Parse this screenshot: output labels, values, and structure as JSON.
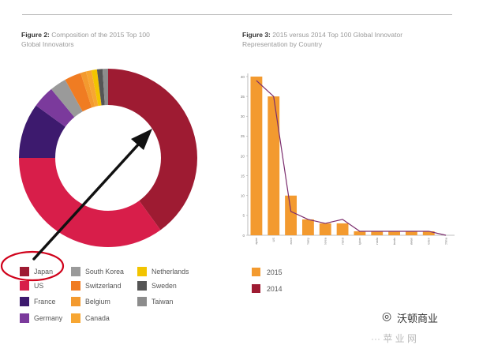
{
  "fig2": {
    "title_bold": "Figure 2:",
    "title_rest": "Composition of the 2015 Top 100",
    "title_line2": "Global Innovators"
  },
  "fig3": {
    "title_bold": "Figure 3:",
    "title_rest": "2015 versus 2014 Top 100 Global Innovator",
    "title_line2": "Representation by Country"
  },
  "chart_data": [
    {
      "type": "pie",
      "donut": true,
      "categories": [
        "Japan",
        "US",
        "France",
        "Germany",
        "South Korea",
        "Switzerland",
        "Belgium",
        "Canada",
        "Netherlands",
        "Sweden",
        "Taiwan"
      ],
      "values": [
        40,
        35,
        10,
        4,
        3,
        3,
        1,
        1,
        1,
        1,
        1
      ],
      "colors": [
        "#9e1b32",
        "#d81e4a",
        "#3d1a6e",
        "#7b3a9c",
        "#9a9a9a",
        "#f07c22",
        "#f39a2f",
        "#f7a632",
        "#f2c400",
        "#555555",
        "#8c8c8c"
      ],
      "legend_placement": "bottom"
    },
    {
      "type": "bar",
      "categories": [
        "Japan",
        "US",
        "France",
        "Germany",
        "South Korea",
        "Switzerland",
        "Belgium",
        "Canada",
        "Netherlands",
        "Taiwan",
        "Sweden",
        "China"
      ],
      "series": [
        {
          "name": "2015",
          "type": "bar",
          "color": "#f39a2f",
          "values": [
            40,
            35,
            10,
            4,
            3,
            3,
            1,
            1,
            1,
            1,
            1,
            0
          ]
        },
        {
          "name": "2014",
          "type": "line",
          "color": "#7b2d6e",
          "values": [
            39,
            35,
            6,
            4,
            3,
            4,
            1,
            1,
            1,
            1,
            1,
            0
          ]
        }
      ],
      "yticks": [
        0,
        5,
        10,
        15,
        20,
        25,
        30,
        35,
        40
      ],
      "ylim": [
        0,
        40
      ],
      "legend_placement": "bottom-left"
    }
  ],
  "watermark": {
    "icon": "wechat-icon",
    "text": "沃顿商业"
  },
  "bottom_fragment": "··· 苹 业 网"
}
